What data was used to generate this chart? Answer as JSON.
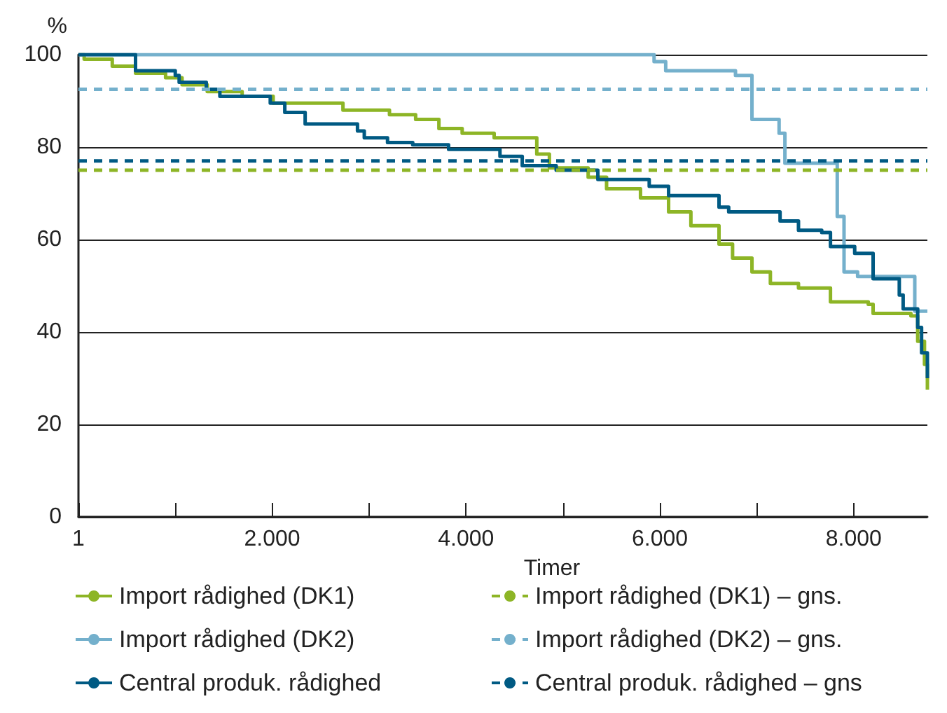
{
  "chart_data": {
    "type": "step",
    "xlabel": "Timer",
    "ylabel": "%",
    "xlim": [
      1,
      8760
    ],
    "ylim": [
      0,
      100
    ],
    "xticks": [
      1,
      {
        "value": 1000,
        "label": null
      },
      {
        "value": 2000,
        "label": "2.000"
      },
      {
        "value": 3000,
        "label": null
      },
      {
        "value": 4000,
        "label": "4.000"
      },
      {
        "value": 5000,
        "label": null
      },
      {
        "value": 6000,
        "label": "6.000"
      },
      {
        "value": 7000,
        "label": null
      },
      {
        "value": 8000,
        "label": "8.000"
      }
    ],
    "yticks": [
      0,
      20,
      40,
      60,
      80,
      100
    ],
    "grid": "y",
    "legend": "bottom",
    "marker": "none",
    "series": [
      {
        "name": "Import rådighed (DK1)",
        "color": "#8db526",
        "x": [
          1,
          60,
          350,
          590,
          900,
          1070,
          1330,
          1690,
          2010,
          2730,
          3210,
          3480,
          3720,
          3960,
          4290,
          4730,
          4860,
          5260,
          5450,
          5800,
          6090,
          6320,
          6610,
          6750,
          6950,
          7140,
          7430,
          7760,
          8150,
          8200,
          8590,
          8660,
          8730,
          8760
        ],
        "values": [
          100,
          99,
          97.5,
          96,
          95,
          93.5,
          92,
          91,
          89.5,
          88,
          87,
          86,
          84,
          83,
          82,
          78.5,
          75.5,
          73.5,
          71,
          69,
          66,
          63,
          59,
          56,
          53,
          50.5,
          49.5,
          46.5,
          46,
          44,
          43.5,
          38,
          33,
          27.5
        ]
      },
      {
        "name": "Import rådighed (DK2)",
        "color": "#74b0cc",
        "x": [
          1,
          5940,
          6060,
          6780,
          6950,
          7230,
          7290,
          7830,
          7900,
          8040,
          8630,
          8760
        ],
        "values": [
          100,
          98.5,
          96.5,
          95.5,
          86,
          83,
          76.5,
          65,
          53,
          52,
          44.5,
          44.5
        ]
      },
      {
        "name": "Central produk. rådighed",
        "color": "#005a83",
        "x": [
          1,
          590,
          1000,
          1040,
          1320,
          1460,
          1980,
          2130,
          2340,
          2880,
          2950,
          3190,
          3450,
          3820,
          4350,
          4580,
          4930,
          5360,
          5890,
          6090,
          6610,
          6710,
          7240,
          7430,
          7670,
          7760,
          8010,
          8200,
          8470,
          8510,
          8660,
          8700,
          8760
        ],
        "values": [
          100,
          96.5,
          95.5,
          94,
          92.5,
          91,
          89.5,
          87.5,
          85,
          83.5,
          82,
          81,
          80.5,
          79.5,
          78,
          76,
          75,
          73,
          71.5,
          69.5,
          67,
          66,
          64,
          62,
          61.5,
          58.5,
          57,
          51.5,
          48,
          45,
          41,
          35.5,
          30
        ]
      },
      {
        "name": "Import rådighed (DK1) – gns.",
        "type": "line",
        "line_style": "dashed",
        "color": "#8db526",
        "x": [
          1,
          8760
        ],
        "values": [
          75,
          75
        ]
      },
      {
        "name": "Import rådighed (DK2) – gns.",
        "type": "line",
        "line_style": "dashed",
        "color": "#74b0cc",
        "x": [
          1,
          8760
        ],
        "values": [
          92.5,
          92.5
        ]
      },
      {
        "name": "Central produk. rådighed – gns",
        "type": "line",
        "line_style": "dashed",
        "color": "#005a83",
        "x": [
          1,
          8760
        ],
        "values": [
          77,
          77
        ]
      }
    ]
  }
}
